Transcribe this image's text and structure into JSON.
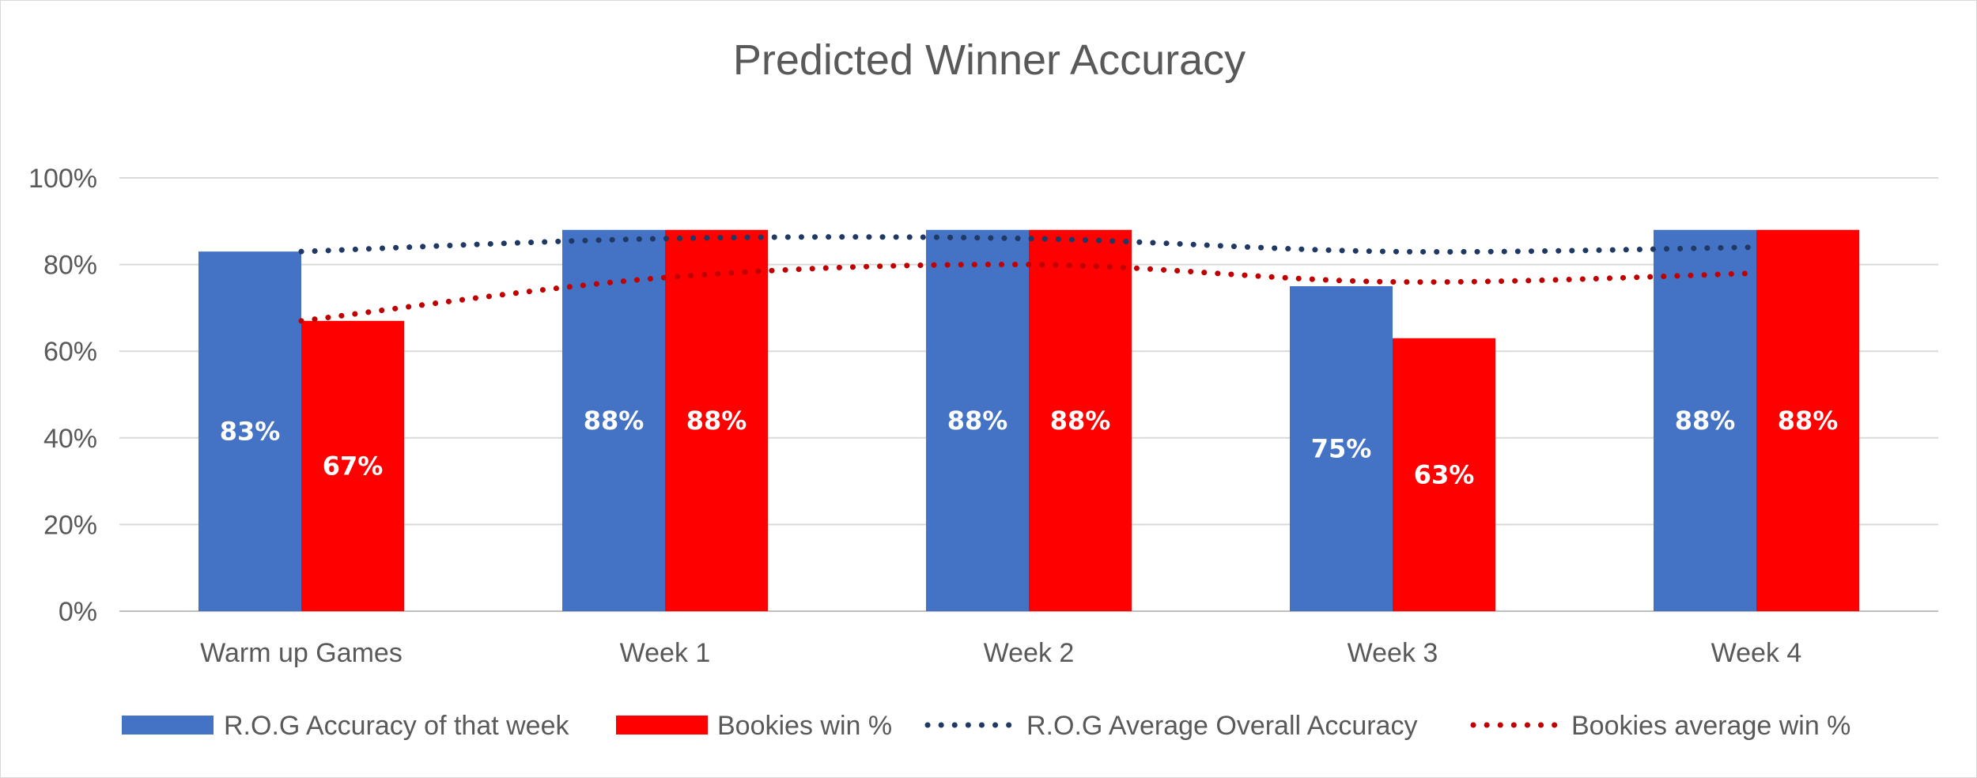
{
  "chart_data": {
    "type": "bar",
    "title": "Predicted Winner Accuracy",
    "categories": [
      "Warm up Games",
      "Week 1",
      "Week 2",
      "Week 3",
      "Week 4"
    ],
    "ylim": [
      0,
      100
    ],
    "yticks": [
      "0%",
      "20%",
      "40%",
      "60%",
      "80%",
      "100%"
    ],
    "grid": true,
    "legend_position": "bottom",
    "series": [
      {
        "name": "R.O.G Accuracy of that week",
        "kind": "bar",
        "color": "#4472C4",
        "values": [
          83,
          88,
          88,
          75,
          88
        ],
        "labels": [
          "83%",
          "88%",
          "88%",
          "75%",
          "88%"
        ]
      },
      {
        "name": "Bookies win %",
        "kind": "bar",
        "color": "#FF0000",
        "values": [
          67,
          88,
          88,
          63,
          88
        ],
        "labels": [
          "67%",
          "88%",
          "88%",
          "63%",
          "88%"
        ]
      },
      {
        "name": "R.O.G Average Overall Accuracy",
        "kind": "line-dotted",
        "color": "#1F3864",
        "values": [
          83,
          86,
          86,
          83,
          84
        ]
      },
      {
        "name": "Bookies average win %",
        "kind": "line-dotted",
        "color": "#C00000",
        "values": [
          67,
          77,
          80,
          76,
          78
        ]
      }
    ]
  }
}
